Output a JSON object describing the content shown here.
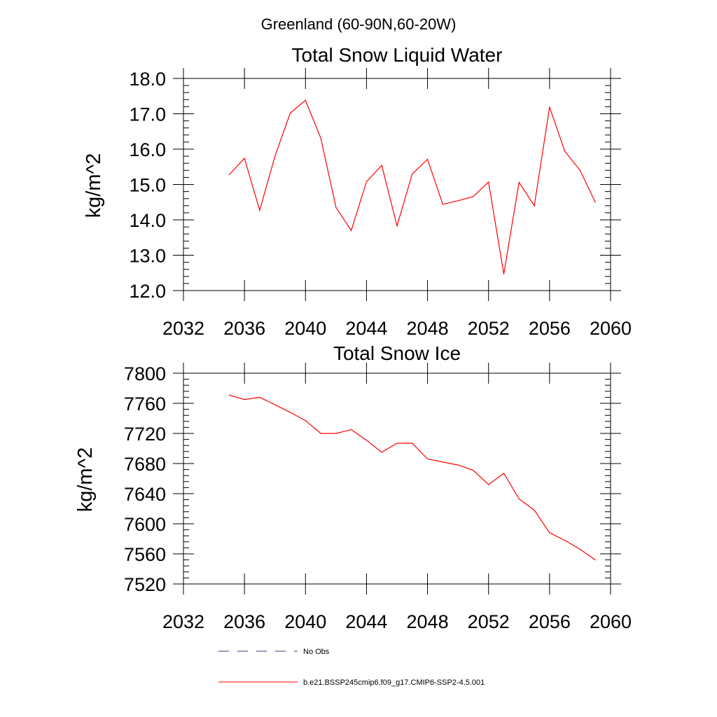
{
  "figure": {
    "title": "Greenland (60-90N,60-20W)"
  },
  "chart_data": [
    {
      "type": "line",
      "title": "Total Snow Liquid Water",
      "xlabel": "",
      "ylabel": "kg/m^2",
      "xlim": [
        2032,
        2060
      ],
      "ylim": [
        12.0,
        18.0
      ],
      "x_ticks": [
        "2032",
        "2036",
        "2040",
        "2044",
        "2048",
        "2052",
        "2056",
        "2060"
      ],
      "y_ticks": [
        "12.0",
        "13.0",
        "14.0",
        "15.0",
        "16.0",
        "17.0",
        "18.0"
      ],
      "grid": false,
      "series": [
        {
          "name": "b.e21.BSSP245cmip6.f09_g17.CMIP6-SSP2-4.5.001",
          "color": "#ff0000",
          "x": [
            2035,
            2036,
            2037,
            2038,
            2039,
            2040,
            2041,
            2042,
            2043,
            2044,
            2045,
            2046,
            2047,
            2048,
            2049,
            2050,
            2051,
            2052,
            2053,
            2054,
            2055,
            2056,
            2057,
            2058,
            2059
          ],
          "values": [
            15.28,
            15.74,
            14.27,
            15.8,
            17.02,
            17.38,
            16.31,
            14.35,
            13.7,
            15.08,
            15.54,
            13.83,
            15.3,
            15.71,
            14.44,
            14.54,
            14.66,
            15.07,
            12.47,
            15.06,
            14.4,
            17.19,
            15.94,
            15.4,
            14.5
          ]
        }
      ]
    },
    {
      "type": "line",
      "title": "Total Snow Ice",
      "xlabel": "",
      "ylabel": "kg/m^2",
      "xlim": [
        2032,
        2060
      ],
      "ylim": [
        7520,
        7800
      ],
      "x_ticks": [
        "2032",
        "2036",
        "2040",
        "2044",
        "2048",
        "2052",
        "2056",
        "2060"
      ],
      "y_ticks": [
        "7520",
        "7560",
        "7600",
        "7640",
        "7680",
        "7720",
        "7760",
        "7800"
      ],
      "grid": false,
      "series": [
        {
          "name": "b.e21.BSSP245cmip6.f09_g17.CMIP6-SSP2-4.5.001",
          "color": "#ff0000",
          "x": [
            2035,
            2036,
            2037,
            2038,
            2039,
            2040,
            2041,
            2042,
            2043,
            2044,
            2045,
            2046,
            2047,
            2048,
            2049,
            2050,
            2051,
            2052,
            2053,
            2054,
            2055,
            2056,
            2057,
            2058,
            2059
          ],
          "values": [
            7771,
            7765,
            7768,
            7758,
            7748,
            7737,
            7720,
            7720,
            7725,
            7711,
            7695,
            7707,
            7707,
            7686,
            7682,
            7678,
            7671,
            7652,
            7667,
            7633,
            7618,
            7588,
            7578,
            7566,
            7552
          ]
        }
      ]
    }
  ],
  "legend": {
    "placement": "bottom",
    "items": [
      {
        "label": "No Obs",
        "color": "#3a3a8a",
        "style": "dashed"
      },
      {
        "label": "b.e21.BSSP245cmip6.f09_g17.CMIP6-SSP2-4.5.001",
        "color": "#ff0000",
        "style": "solid"
      }
    ]
  }
}
